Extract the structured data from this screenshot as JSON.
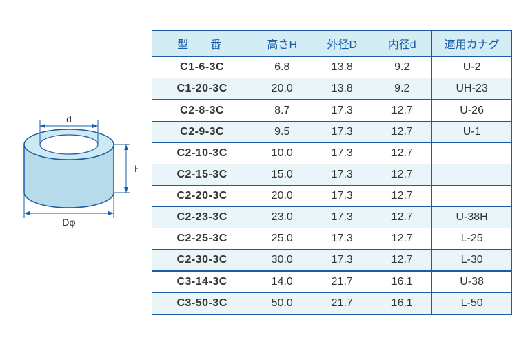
{
  "diagram": {
    "label_d": "d",
    "label_H": "H",
    "label_D_phi": "Dφ",
    "stroke_color": "#1a5ca8",
    "body_fill": "#b7dce9",
    "top_inner_fill": "#ffffff",
    "top_outer_fill": "#cdeaf3"
  },
  "table": {
    "headers": {
      "model": "型　番",
      "height_h": "高さH",
      "outer_d": "外径D",
      "inner_d": "内径d",
      "bracket": "適用カナグ"
    },
    "rows": [
      {
        "model": "C1-6-3C",
        "h": "6.8",
        "D": "13.8",
        "d": "9.2",
        "bracket": "U-2",
        "shade": false,
        "group_end": false
      },
      {
        "model": "C1-20-3C",
        "h": "20.0",
        "D": "13.8",
        "d": "9.2",
        "bracket": "UH-23",
        "shade": true,
        "group_end": true
      },
      {
        "model": "C2-8-3C",
        "h": "8.7",
        "D": "17.3",
        "d": "12.7",
        "bracket": "U-26",
        "shade": false,
        "group_end": false
      },
      {
        "model": "C2-9-3C",
        "h": "9.5",
        "D": "17.3",
        "d": "12.7",
        "bracket": "U-1",
        "shade": true,
        "group_end": false
      },
      {
        "model": "C2-10-3C",
        "h": "10.0",
        "D": "17.3",
        "d": "12.7",
        "bracket": "",
        "shade": false,
        "group_end": false
      },
      {
        "model": "C2-15-3C",
        "h": "15.0",
        "D": "17.3",
        "d": "12.7",
        "bracket": "",
        "shade": true,
        "group_end": false
      },
      {
        "model": "C2-20-3C",
        "h": "20.0",
        "D": "17.3",
        "d": "12.7",
        "bracket": "",
        "shade": false,
        "group_end": false
      },
      {
        "model": "C2-23-3C",
        "h": "23.0",
        "D": "17.3",
        "d": "12.7",
        "bracket": "U-38H",
        "shade": true,
        "group_end": false
      },
      {
        "model": "C2-25-3C",
        "h": "25.0",
        "D": "17.3",
        "d": "12.7",
        "bracket": "L-25",
        "shade": false,
        "group_end": false
      },
      {
        "model": "C2-30-3C",
        "h": "30.0",
        "D": "17.3",
        "d": "12.7",
        "bracket": "L-30",
        "shade": true,
        "group_end": true
      },
      {
        "model": "C3-14-3C",
        "h": "14.0",
        "D": "21.7",
        "d": "16.1",
        "bracket": "U-38",
        "shade": false,
        "group_end": false
      },
      {
        "model": "C3-50-3C",
        "h": "50.0",
        "D": "21.7",
        "d": "16.1",
        "bracket": "L-50",
        "shade": true,
        "group_end": false
      }
    ]
  }
}
